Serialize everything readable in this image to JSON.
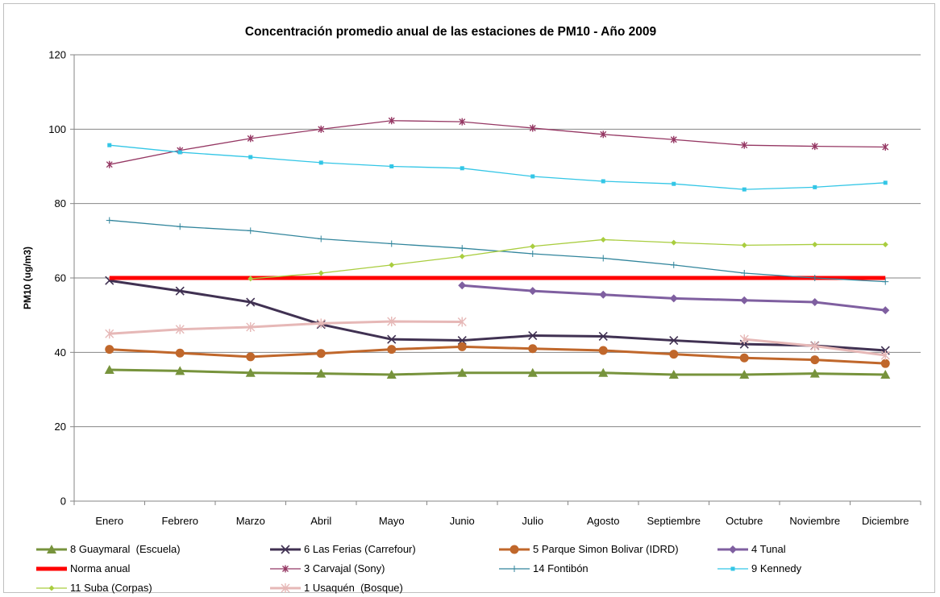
{
  "chart_data": {
    "type": "line",
    "title": "Concentración promedio anual de las estaciones de  PM10 - Año 2009",
    "xlabel": "",
    "ylabel": "PM10 (ug/m3)",
    "ylim": [
      0,
      120
    ],
    "yticks": [
      "0",
      "20",
      "40",
      "60",
      "80",
      "100",
      "120"
    ],
    "grid": true,
    "legend_position": "bottom",
    "categories": [
      "Enero",
      "Febrero",
      "Marzo",
      "Abril",
      "Mayo",
      "Junio",
      "Julio",
      "Agosto",
      "Septiembre",
      "Octubre",
      "Noviembre",
      "Diciembre"
    ],
    "series": [
      {
        "name": "8 Guaymaral  (Escuela)",
        "color": "#77933c",
        "marker": "triangle",
        "width": 3,
        "values": [
          35.3,
          35.0,
          34.5,
          34.3,
          34.0,
          34.5,
          34.5,
          34.5,
          34.0,
          34.0,
          34.3,
          34.0
        ]
      },
      {
        "name": "6 Las Ferias (Carrefour)",
        "color": "#403152",
        "marker": "x",
        "width": 3,
        "values": [
          59.3,
          56.5,
          53.5,
          47.5,
          43.5,
          43.2,
          44.5,
          44.3,
          43.2,
          42.2,
          41.8,
          40.5
        ]
      },
      {
        "name": "5 Parque Simon Bolivar (IDRD)",
        "color": "#c0672b",
        "marker": "circle",
        "width": 3,
        "values": [
          40.8,
          39.8,
          38.8,
          39.7,
          40.8,
          41.5,
          41.0,
          40.5,
          39.5,
          38.5,
          38.0,
          37.0
        ]
      },
      {
        "name": "4 Tunal",
        "color": "#7f5fa0",
        "marker": "diamond",
        "width": 3,
        "values": [
          null,
          null,
          null,
          null,
          null,
          58.0,
          56.5,
          55.5,
          54.5,
          54.0,
          53.5,
          51.3
        ]
      },
      {
        "name": "Norma anual",
        "color": "#ff0000",
        "marker": "none",
        "width": 5,
        "values": [
          60,
          60,
          60,
          60,
          60,
          60,
          60,
          60,
          60,
          60,
          60,
          60
        ]
      },
      {
        "name": "3 Carvajal (Sony)",
        "color": "#953763",
        "marker": "star",
        "width": 1.3,
        "values": [
          90.5,
          94.3,
          97.5,
          100.0,
          102.3,
          102.0,
          100.3,
          98.6,
          97.2,
          95.7,
          95.4,
          95.2
        ]
      },
      {
        "name": "14 Fontibón",
        "color": "#31859c",
        "marker": "plus",
        "width": 1.3,
        "values": [
          75.5,
          73.8,
          72.7,
          70.5,
          69.2,
          68.0,
          66.5,
          65.3,
          63.5,
          61.3,
          60.0,
          59.0
        ]
      },
      {
        "name": "9 Kennedy",
        "color": "#33c6e6",
        "marker": "square",
        "width": 1.3,
        "values": [
          95.7,
          93.8,
          92.5,
          91.0,
          90.0,
          89.5,
          87.3,
          86.0,
          85.3,
          83.8,
          84.4,
          85.6
        ]
      },
      {
        "name": "11 Suba (Corpas)",
        "color": "#a9cd3f",
        "marker": "diamond",
        "width": 1.3,
        "values": [
          null,
          null,
          59.8,
          61.3,
          63.5,
          65.8,
          68.5,
          70.3,
          69.5,
          68.8,
          69.0,
          69.0
        ]
      },
      {
        "name": "1 Usaquén  (Bosque)",
        "color": "#e6b8b7",
        "marker": "star",
        "width": 3,
        "values": [
          45.0,
          46.2,
          46.8,
          47.8,
          48.3,
          48.2,
          null,
          null,
          null,
          43.5,
          41.7,
          39.2
        ]
      }
    ]
  }
}
